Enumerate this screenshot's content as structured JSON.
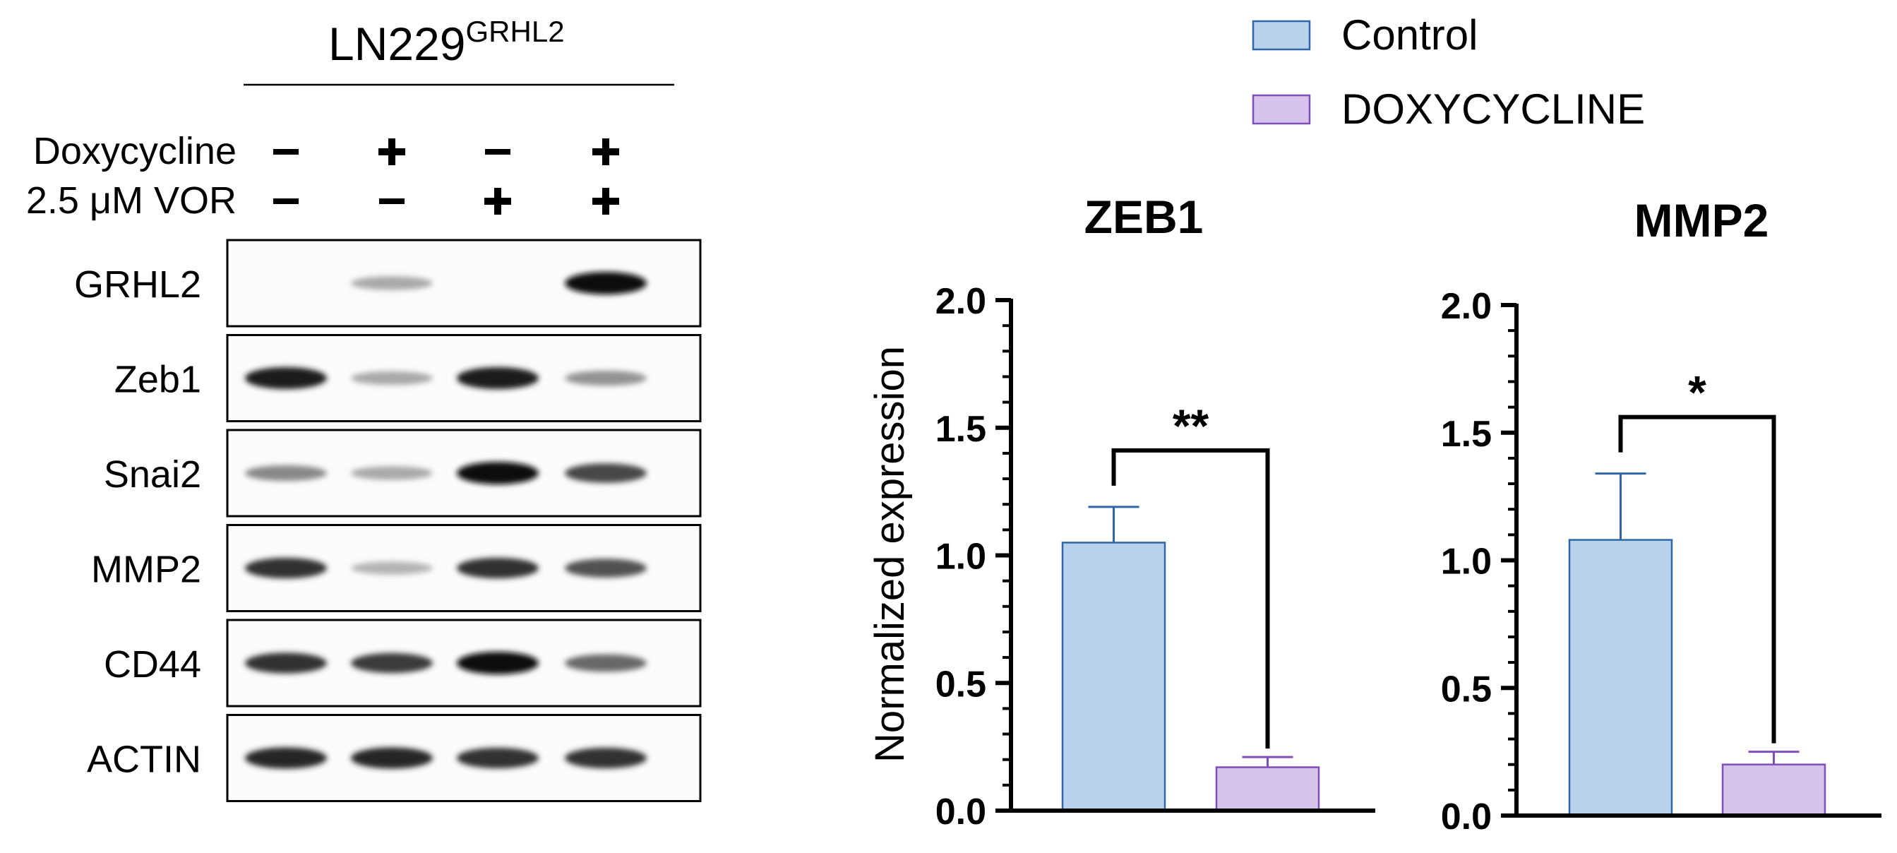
{
  "blot": {
    "title": "LN229",
    "title_superscript": "GRHL2",
    "treatment_rows": [
      {
        "label": "Doxycycline",
        "signs": [
          "–",
          "+",
          "–",
          "+"
        ]
      },
      {
        "label": "2.5 μM VOR",
        "signs": [
          "–",
          "–",
          "+",
          "+"
        ]
      }
    ],
    "bands": [
      {
        "label": "GRHL2",
        "lanes": [
          0.0,
          0.3,
          0.0,
          1.0
        ]
      },
      {
        "label": "Zeb1",
        "lanes": [
          0.95,
          0.3,
          0.95,
          0.4
        ]
      },
      {
        "label": "Snai2",
        "lanes": [
          0.45,
          0.3,
          1.0,
          0.75
        ]
      },
      {
        "label": "MMP2",
        "lanes": [
          0.85,
          0.25,
          0.85,
          0.7
        ]
      },
      {
        "label": "CD44",
        "lanes": [
          0.85,
          0.8,
          1.0,
          0.6
        ]
      },
      {
        "label": "ACTIN",
        "lanes": [
          0.9,
          0.9,
          0.85,
          0.85
        ]
      }
    ]
  },
  "legend": {
    "items": [
      {
        "name": "Control",
        "color": "#b9d2ec",
        "stroke": "#2f66a8"
      },
      {
        "name": "DOXYCYCLINE",
        "color": "#d5c3eb",
        "stroke": "#7f4fb8"
      }
    ]
  },
  "chart_data": [
    {
      "type": "bar",
      "title": "ZEB1",
      "ylabel": "Normalized expression",
      "ylim": [
        0,
        2.0
      ],
      "yticks": [
        "0.0",
        "0.5",
        "1.0",
        "1.5",
        "2.0"
      ],
      "categories": [
        "Control",
        "DOXYCYCLINE"
      ],
      "values": [
        1.05,
        0.17
      ],
      "errors": [
        0.14,
        0.04
      ],
      "significance": "**"
    },
    {
      "type": "bar",
      "title": "MMP2",
      "ylabel": "",
      "ylim": [
        0,
        2.0
      ],
      "yticks": [
        "0.0",
        "0.5",
        "1.0",
        "1.5",
        "2.0"
      ],
      "categories": [
        "Control",
        "DOXYCYCLINE"
      ],
      "values": [
        1.08,
        0.2
      ],
      "errors": [
        0.26,
        0.05
      ],
      "significance": "*"
    }
  ]
}
